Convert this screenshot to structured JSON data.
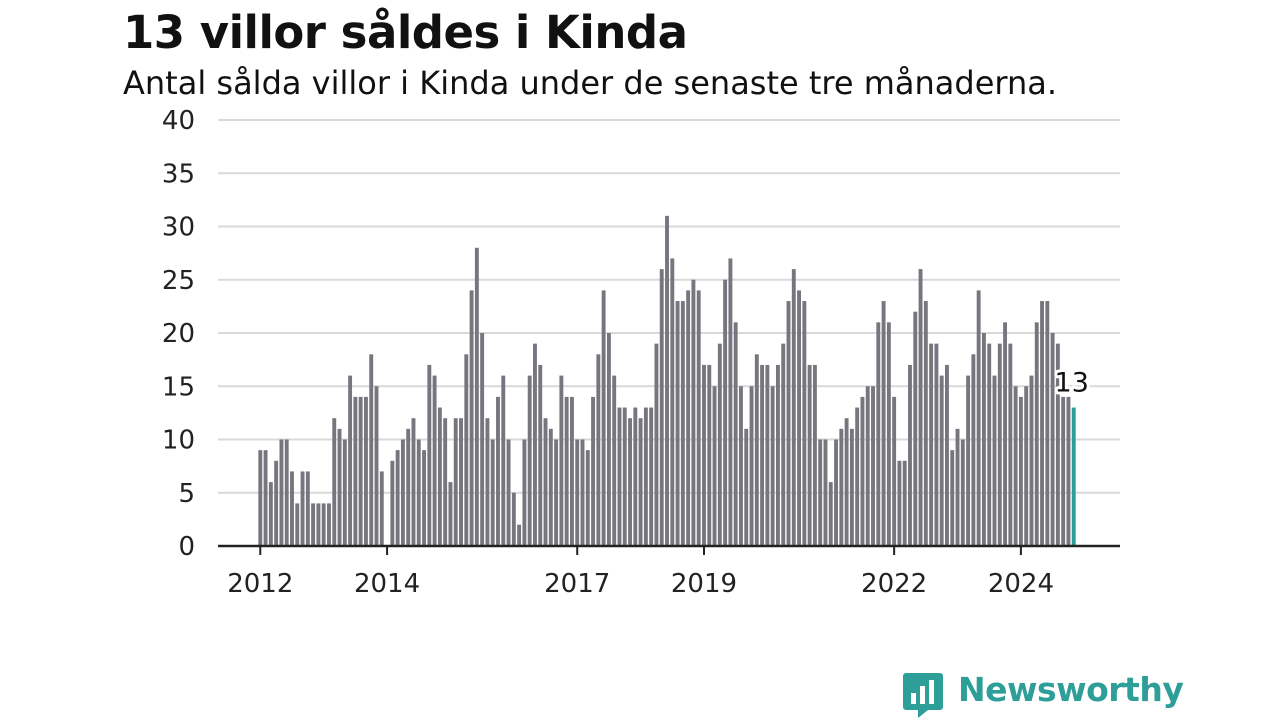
{
  "header": {
    "title": "13 villor såldes i Kinda",
    "subtitle": "Antal sålda villor i Kinda under de senaste tre månaderna."
  },
  "brand": {
    "name": "Newsworthy",
    "icon": "newsworthy-logo-icon",
    "color": "#2d9e98"
  },
  "colors": {
    "bar": "#76767e",
    "highlight": "#2a9f9a",
    "grid": "#d9d9d9",
    "axis": "#222222"
  },
  "chart_data": {
    "type": "bar",
    "title": "13 villor såldes i Kinda",
    "subtitle": "Antal sålda villor i Kinda under de senaste tre månaderna.",
    "xlabel": "",
    "ylabel": "",
    "ylim": [
      0,
      40
    ],
    "yticks": [
      0,
      5,
      10,
      15,
      20,
      25,
      30,
      35,
      40
    ],
    "grid": true,
    "legend": "none",
    "x_start": "2012-01",
    "x_end": "2024-12",
    "xtick_labels": [
      {
        "label": "2012",
        "date": "2012-01"
      },
      {
        "label": "2014",
        "date": "2014-01"
      },
      {
        "label": "2017",
        "date": "2017-01"
      },
      {
        "label": "2019",
        "date": "2019-01"
      },
      {
        "label": "2022",
        "date": "2022-01"
      },
      {
        "label": "2024",
        "date": "2024-01"
      }
    ],
    "highlight_label": "13",
    "values": [
      9,
      9,
      6,
      8,
      10,
      10,
      7,
      4,
      7,
      7,
      4,
      4,
      4,
      4,
      12,
      11,
      10,
      16,
      14,
      14,
      14,
      18,
      15,
      7,
      null,
      8,
      9,
      10,
      11,
      12,
      10,
      9,
      17,
      16,
      13,
      12,
      6,
      12,
      12,
      18,
      24,
      28,
      20,
      12,
      10,
      14,
      16,
      10,
      5,
      2,
      10,
      16,
      19,
      17,
      12,
      11,
      10,
      16,
      14,
      14,
      10,
      10,
      9,
      14,
      18,
      24,
      20,
      16,
      13,
      13,
      12,
      13,
      12,
      13,
      13,
      19,
      26,
      31,
      27,
      23,
      23,
      24,
      25,
      24,
      17,
      17,
      15,
      19,
      25,
      27,
      21,
      15,
      11,
      15,
      18,
      17,
      17,
      15,
      17,
      19,
      23,
      26,
      24,
      23,
      17,
      17,
      10,
      10,
      6,
      10,
      11,
      12,
      11,
      13,
      14,
      15,
      15,
      21,
      23,
      21,
      14,
      8,
      8,
      17,
      22,
      26,
      23,
      19,
      19,
      16,
      17,
      9,
      11,
      10,
      16,
      18,
      24,
      20,
      19,
      16,
      19,
      21,
      19,
      15,
      14,
      15,
      16,
      21,
      23,
      23,
      20,
      19,
      14,
      14,
      13
    ]
  }
}
